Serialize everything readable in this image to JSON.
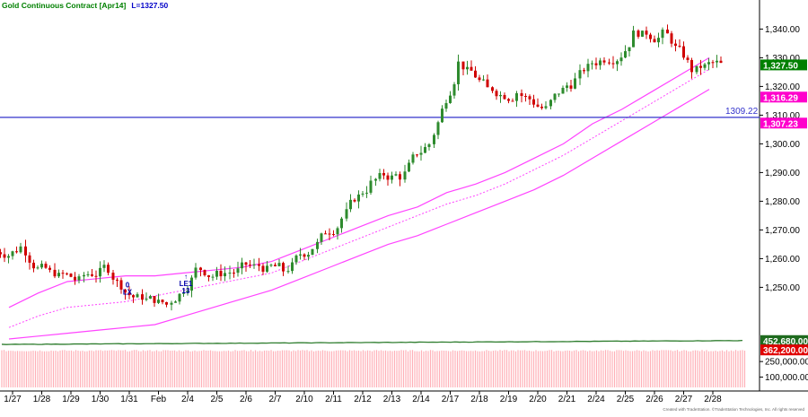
{
  "header": {
    "title": "Gold Continuous Contract [Apr14]",
    "last_label": "L=1327.50"
  },
  "footer": {
    "credit": "Created with TradeStation. ©TradeStation Technologies, Inc. All rights reserved"
  },
  "colors": {
    "up_bar": "#2e8b2e",
    "down_bar": "#d00000",
    "envelope": "#ff44ff",
    "horizontal_line": "#3333cc",
    "volume_line": "#2e7d2e",
    "volume_bars": "#ffb0b8",
    "signal_text": "#0000aa"
  },
  "chart_data": {
    "type": "candlestick",
    "panels": {
      "price": {
        "ylim": [
          1237,
          1347
        ],
        "yticks": [
          "1,250.00",
          "1,260.00",
          "1,270.00",
          "1,280.00",
          "1,290.00",
          "1,300.00",
          "1,310.00",
          "1,320.00",
          "1,330.00",
          "1,340.00"
        ],
        "ytick_values": [
          1250,
          1260,
          1270,
          1280,
          1290,
          1300,
          1310,
          1320,
          1330,
          1340
        ],
        "price_tags": [
          {
            "label": "1,327.50",
            "value": 1327.5,
            "color": "#008000"
          },
          {
            "label": "1,316.29",
            "value": 1316.29,
            "color": "#ff00cc"
          },
          {
            "label": "1,307.23",
            "value": 1307.23,
            "color": "#ff00cc"
          }
        ],
        "hline": {
          "value": 1309.22,
          "label": "1309.22"
        }
      },
      "volume": {
        "ylim": [
          0,
          520000
        ],
        "yticks": [
          "100,000.00",
          "250,000.00"
        ],
        "ytick_values": [
          100000,
          250000
        ],
        "value_tags": [
          {
            "label": "452,680.00",
            "value": 452680,
            "color": "#1e6b1e"
          },
          {
            "label": "362,200.00",
            "value": 362200,
            "color": "#e00000"
          }
        ]
      }
    },
    "x_labels": [
      "1/27",
      "1/28",
      "1/29",
      "1/30",
      "1/31",
      "Feb",
      "2/4",
      "2/5",
      "2/6",
      "2/7",
      "2/10",
      "2/11",
      "2/12",
      "2/13",
      "2/14",
      "2/17",
      "2/18",
      "2/19",
      "2/20",
      "2/21",
      "2/24",
      "2/25",
      "2/26",
      "2/27",
      "2/28"
    ],
    "daily_close": [
      1264,
      1255,
      1252,
      1257,
      1246,
      1244,
      1256,
      1255,
      1257,
      1256,
      1264,
      1274,
      1286,
      1289,
      1300,
      1328,
      1319,
      1318,
      1312,
      1322,
      1330,
      1338,
      1338,
      1326,
      1327.5
    ],
    "envelope": {
      "upper": [
        1243,
        1248,
        1252,
        1253,
        1254,
        1254,
        1255,
        1256,
        1257,
        1259,
        1263,
        1267,
        1271,
        1275,
        1278,
        1283,
        1286,
        1290,
        1295,
        1300,
        1307,
        1312,
        1318,
        1324,
        1330
      ],
      "middle": [
        1236,
        1240,
        1243,
        1244,
        1245,
        1247,
        1249,
        1251,
        1253,
        1255,
        1259,
        1263,
        1267,
        1271,
        1275,
        1279,
        1282,
        1286,
        1291,
        1296,
        1302,
        1308,
        1314,
        1320,
        1326
      ],
      "lower": [
        1232,
        1233,
        1234,
        1235,
        1236,
        1237,
        1240,
        1243,
        1246,
        1249,
        1253,
        1257,
        1261,
        1265,
        1268,
        1272,
        1276,
        1280,
        1284,
        1289,
        1295,
        1301,
        1307,
        1313,
        1319
      ]
    },
    "signals": [
      {
        "lines": [
          "0",
          "LX"
        ],
        "date": "1/31",
        "price": 1250
      },
      {
        "lines": [
          "↑",
          "LE1",
          "13"
        ],
        "date": "2/4",
        "price": 1253
      }
    ]
  }
}
